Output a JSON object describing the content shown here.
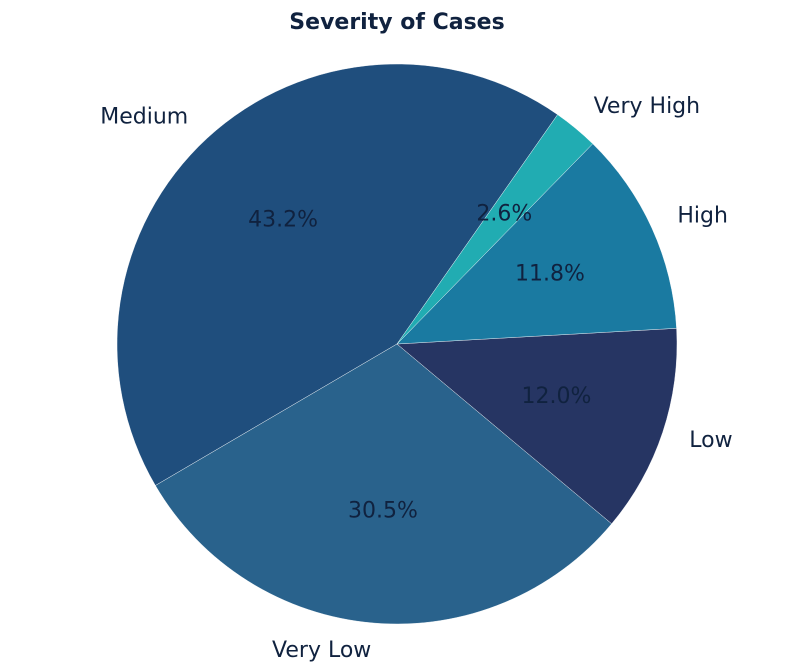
{
  "chart_data": {
    "type": "pie",
    "title": "Severity of Cases",
    "categories": [
      "Medium",
      "Very Low",
      "Low",
      "High",
      "Very High"
    ],
    "values": [
      43.2,
      30.5,
      12.0,
      11.8,
      2.6
    ],
    "value_labels": [
      "43.2%",
      "30.5%",
      "12.0%",
      "11.8%",
      "2.6%"
    ],
    "colors": [
      "#1f4e7d",
      "#29628c",
      "#263563",
      "#1a7aa1",
      "#21acb2"
    ],
    "start_angle_deg": 55,
    "direction": "counterclockwise",
    "legend": "none"
  }
}
